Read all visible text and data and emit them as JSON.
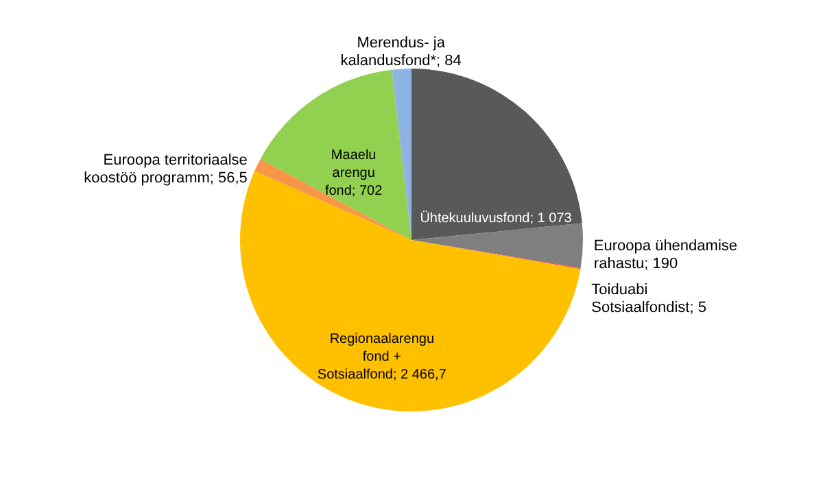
{
  "chart_data": {
    "type": "pie",
    "categories": [
      "Ühtekuuluvusfond",
      "Euroopa ühendamise rahastu",
      "Toiduabi Sotsiaalfondist",
      "Regionaalarengu fond + Sotsiaalfond",
      "Euroopa territoriaalse koostöö programm",
      "Maaelu arengu fond",
      "Merendus- ja kalandusfond*"
    ],
    "values": [
      1073,
      190,
      5,
      2466.7,
      56.5,
      702,
      84
    ],
    "value_labels": [
      "1 073",
      "190",
      "5",
      "2 466,7",
      "56,5",
      "702",
      "84"
    ],
    "colors": [
      "#595959",
      "#7f7f7f",
      "#e8474c",
      "#ffc000",
      "#f79646",
      "#92d050",
      "#8db4e2"
    ],
    "legend": false
  }
}
